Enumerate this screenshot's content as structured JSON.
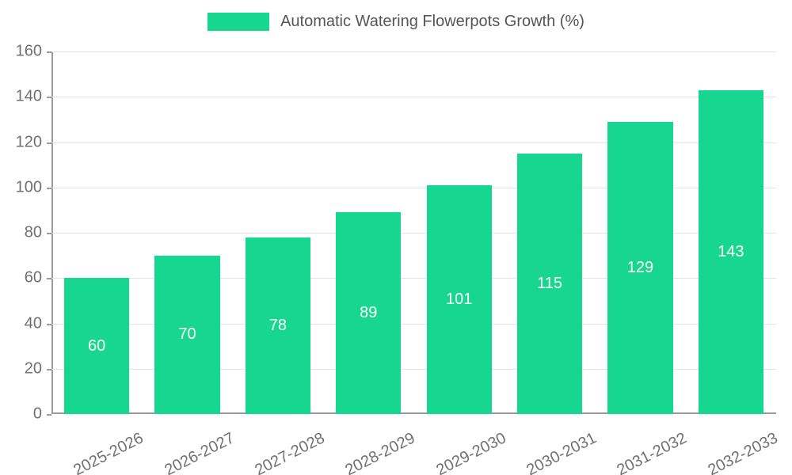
{
  "chart_data": {
    "type": "bar",
    "title": "Automatic Watering Flowerpots Growth (%)",
    "categories": [
      "2025-2026",
      "2026-2027",
      "2027-2028",
      "2028-2029",
      "2029-2030",
      "2030-2031",
      "2031-2032",
      "2032-2033"
    ],
    "values": [
      60,
      70,
      78,
      89,
      101,
      115,
      129,
      143
    ],
    "xlabel": "",
    "ylabel": "",
    "ylim": [
      0,
      160
    ],
    "ytick_step": 20,
    "ytick_labels": [
      "0",
      "20",
      "40",
      "60",
      "80",
      "100",
      "120",
      "140",
      "160"
    ],
    "grid": true,
    "legend_position": "top",
    "bar_color": "#17d68f",
    "value_label_color": "#ffffff",
    "axis_color": "#9a9a9a",
    "grid_color": "#e3e3e3",
    "tick_label_color": "#707070",
    "title_color": "#555555",
    "background_color": "#ffffff"
  }
}
